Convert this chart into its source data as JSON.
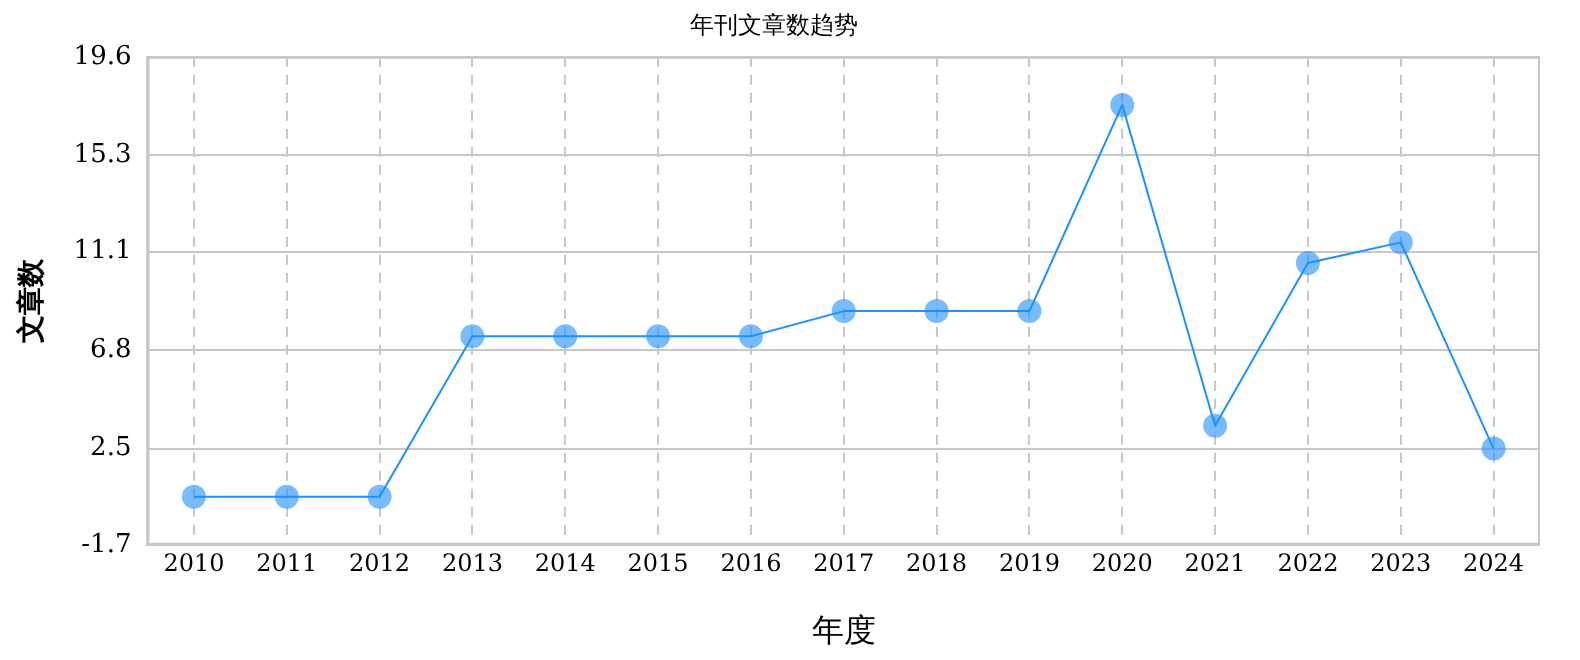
{
  "chart_data": {
    "type": "line",
    "title": "年刊文章数趋势",
    "xlabel": "年度",
    "ylabel": "文章数",
    "categories": [
      "2010",
      "2011",
      "2012",
      "2013",
      "2014",
      "2015",
      "2016",
      "2017",
      "2018",
      "2019",
      "2020",
      "2021",
      "2022",
      "2023",
      "2024"
    ],
    "series": [
      {
        "color": "#1e90ff",
        "values": [
          0.4,
          0.4,
          0.4,
          7.4,
          7.4,
          7.4,
          7.4,
          8.5,
          8.5,
          8.5,
          17.5,
          3.5,
          10.6,
          11.5,
          2.5
        ]
      }
    ],
    "ylim": [
      -1.7,
      19.6
    ],
    "yticks": [
      -1.7,
      2.5,
      6.8,
      11.1,
      15.3,
      19.6
    ],
    "grid": true,
    "marker": "circle",
    "legend": false
  }
}
